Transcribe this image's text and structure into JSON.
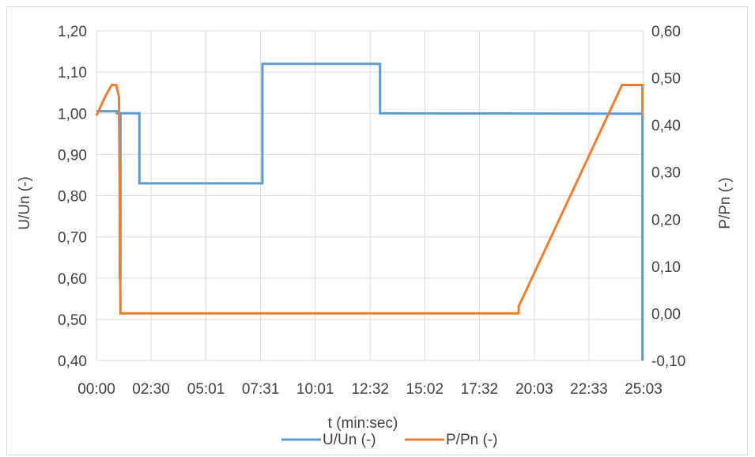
{
  "chart_data": {
    "type": "line",
    "title": "",
    "xlabel": "t (min:sec)",
    "ylabel": "U/Un (-)",
    "y2label": "P/Pn (-)",
    "x_unit": "seconds",
    "xlim": [
      0,
      1503
    ],
    "ylim": [
      0.4,
      1.2
    ],
    "y2lim": [
      -0.1,
      0.6
    ],
    "x_ticks": [
      0,
      150,
      301,
      451,
      601,
      752,
      902,
      1052,
      1203,
      1353,
      1503
    ],
    "x_tick_labels": [
      "00:00",
      "02:30",
      "05:01",
      "07:31",
      "10:01",
      "12:32",
      "15:02",
      "17:32",
      "20:03",
      "22:33",
      "25:03"
    ],
    "y_ticks": [
      0.4,
      0.5,
      0.6,
      0.7,
      0.8,
      0.9,
      1.0,
      1.1,
      1.2
    ],
    "y_tick_labels": [
      "0,40",
      "0,50",
      "0,60",
      "0,70",
      "0,80",
      "0,90",
      "1,00",
      "1,10",
      "1,20"
    ],
    "y2_ticks": [
      -0.1,
      0.0,
      0.1,
      0.2,
      0.3,
      0.4,
      0.5,
      0.6
    ],
    "y2_tick_labels": [
      "-0,10",
      "0,00",
      "0,10",
      "0,20",
      "0,30",
      "0,40",
      "0,50",
      "0,60"
    ],
    "grid": true,
    "legend_position": "bottom",
    "series": [
      {
        "name": "U/Un (-)",
        "axis": "left",
        "color": "#5b9bd5",
        "x": [
          0,
          56,
          56,
          64,
          64,
          66,
          66,
          118,
          118,
          456,
          456,
          779,
          779,
          1500,
          1500
        ],
        "y": [
          1.005,
          1.005,
          1.0,
          1.0,
          0.6,
          0.6,
          1.0,
          1.0,
          0.83,
          0.83,
          1.12,
          1.12,
          1.0,
          0.999,
          0.4
        ]
      },
      {
        "name": "P/Pn (-)",
        "axis": "right",
        "color": "#ed7d31",
        "x": [
          0,
          24,
          42,
          54,
          62,
          66,
          1154,
          1160,
          1160,
          1444,
          1500,
          1500
        ],
        "y": [
          0.42,
          0.46,
          0.485,
          0.485,
          0.46,
          0.0,
          0.0,
          0.0,
          0.015,
          0.485,
          0.485,
          0.42
        ]
      }
    ]
  }
}
